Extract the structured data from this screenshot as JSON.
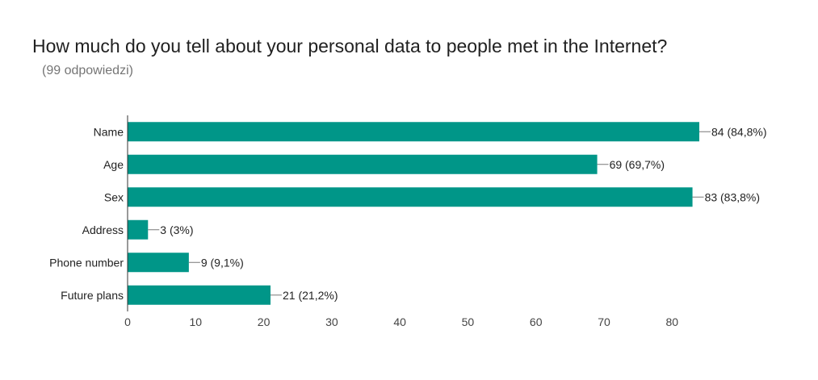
{
  "title": "How much do you tell about your personal data to people met in the Internet?",
  "subtitle": "(99 odpowiedzi)",
  "colors": {
    "bar": "#009688",
    "axis": "#333333",
    "leader": "#777777"
  },
  "chart_data": {
    "type": "bar",
    "orientation": "horizontal",
    "categories": [
      "Name",
      "Age",
      "Sex",
      "Address",
      "Phone number",
      "Future plans"
    ],
    "values": [
      84,
      69,
      83,
      3,
      9,
      21
    ],
    "data_labels": [
      "84 (84,8%)",
      "69 (69,7%)",
      "83 (83,8%)",
      "3 (3%)",
      "9 (9,1%)",
      "21 (21,2%)"
    ],
    "xticks": [
      0,
      10,
      20,
      30,
      40,
      50,
      60,
      70,
      80
    ],
    "xlim": [
      0,
      84
    ],
    "grid": false,
    "legend": "none"
  }
}
